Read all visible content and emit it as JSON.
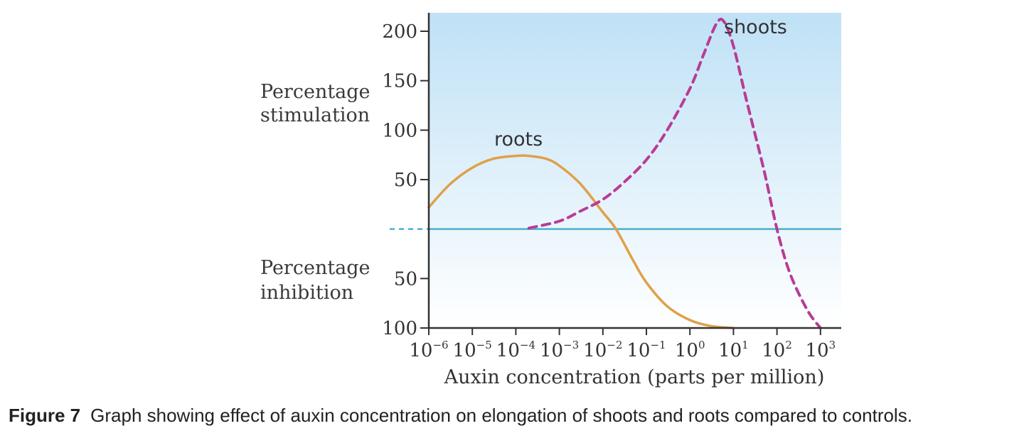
{
  "chart_data": {
    "type": "line",
    "title": "",
    "xlabel": "Auxin concentration (parts per million)",
    "x_scale": "log",
    "x_ticks": [
      {
        "value": 1e-06,
        "base": "10",
        "exp": "−6"
      },
      {
        "value": 1e-05,
        "base": "10",
        "exp": "−5"
      },
      {
        "value": 0.0001,
        "base": "10",
        "exp": "−4"
      },
      {
        "value": 0.001,
        "base": "10",
        "exp": "−3"
      },
      {
        "value": 0.01,
        "base": "10",
        "exp": "−2"
      },
      {
        "value": 0.1,
        "base": "10",
        "exp": "−1"
      },
      {
        "value": 1,
        "base": "10",
        "exp": "0"
      },
      {
        "value": 10,
        "base": "10",
        "exp": "1"
      },
      {
        "value": 100,
        "base": "10",
        "exp": "2"
      },
      {
        "value": 1000,
        "base": "10",
        "exp": "3"
      }
    ],
    "x_range": [
      1e-06,
      3000
    ],
    "y_range": [
      -100,
      200
    ],
    "y_ticks": [
      {
        "value": 200,
        "label": "200"
      },
      {
        "value": 150,
        "label": "150"
      },
      {
        "value": 100,
        "label": "100"
      },
      {
        "value": 50,
        "label": "50"
      },
      {
        "value": -50,
        "label": "50"
      },
      {
        "value": -100,
        "label": "100"
      }
    ],
    "y_label_upper": [
      "Percentage",
      "stimulation"
    ],
    "y_label_lower": [
      "Percentage",
      "inhibition"
    ],
    "baseline_value": 0,
    "grid": false,
    "series": [
      {
        "name": "roots",
        "style": "solid",
        "color": "#e0a048",
        "x": [
          1e-06,
          3e-06,
          1e-05,
          3e-05,
          0.0001,
          0.0002,
          0.0005,
          0.001,
          0.003,
          0.01,
          0.02,
          0.05,
          0.1,
          0.3,
          1,
          3,
          10
        ],
        "y": [
          22,
          45,
          62,
          71,
          74,
          74,
          71,
          64,
          46,
          17,
          0,
          -32,
          -54,
          -78,
          -92,
          -98,
          -100
        ]
      },
      {
        "name": "shoots",
        "style": "dashed",
        "color": "#b83c96",
        "x": [
          0.0002,
          0.001,
          0.003,
          0.01,
          0.03,
          0.1,
          0.3,
          1,
          2,
          4,
          6,
          10,
          20,
          50,
          100,
          200,
          500,
          1000
        ],
        "y": [
          1,
          8,
          18,
          30,
          47,
          70,
          100,
          142,
          175,
          207,
          210,
          185,
          130,
          60,
          0,
          -45,
          -82,
          -100
        ]
      }
    ],
    "colors": {
      "plot_top": "#bfe1f6",
      "plot_bottom": "#ffffff",
      "baseline": "#4ab0d2",
      "axis": "#333333"
    }
  },
  "caption": {
    "figure_number": "Figure 7",
    "text": "Graph showing effect of auxin concentration on elongation of shoots and roots compared to controls."
  }
}
